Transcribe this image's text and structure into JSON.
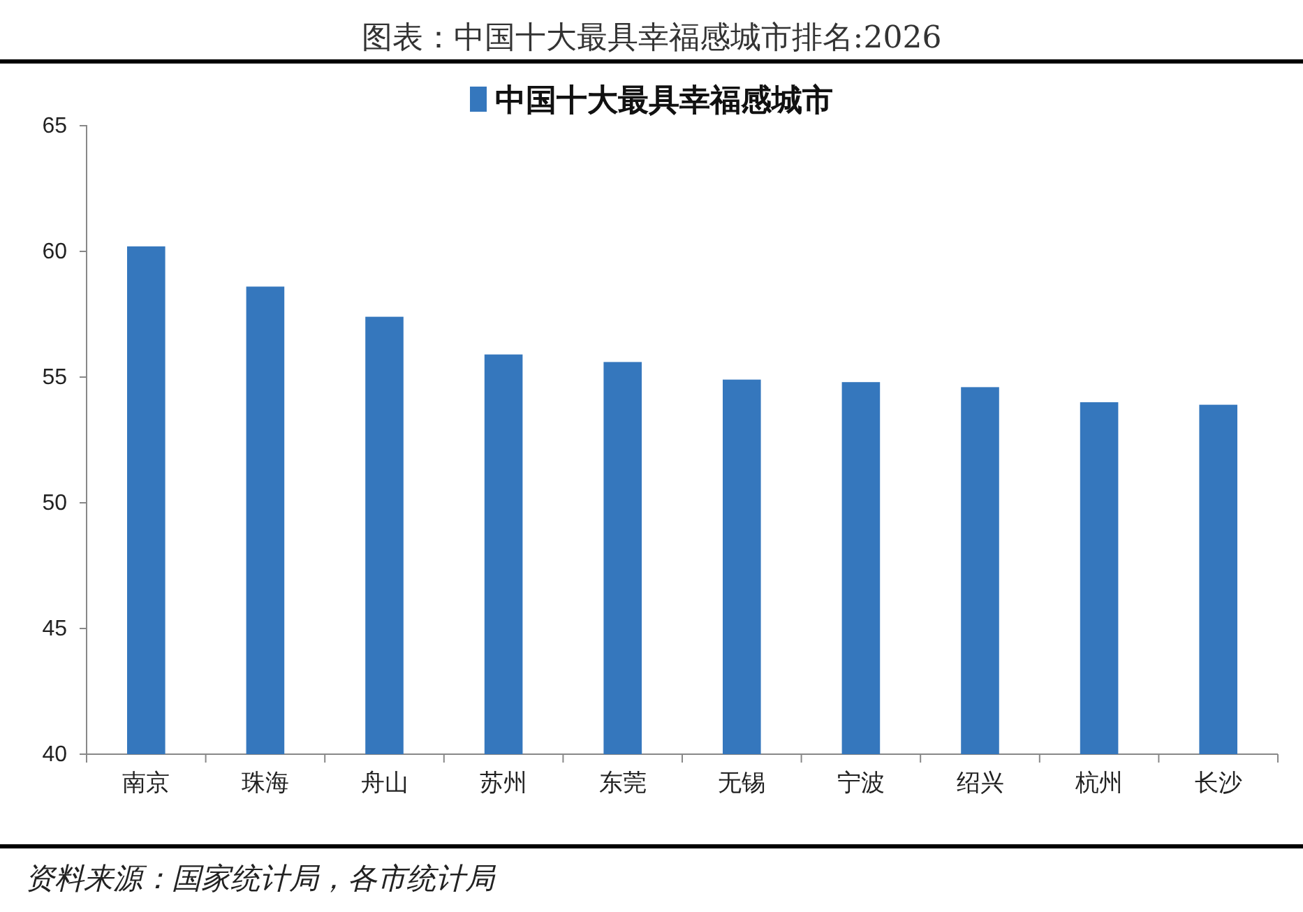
{
  "chart_data": {
    "type": "bar",
    "title": "图表：中国十大最具幸福感城市排名:2026",
    "categories": [
      "南京",
      "珠海",
      "舟山",
      "苏州",
      "东莞",
      "无锡",
      "宁波",
      "绍兴",
      "杭州",
      "长沙"
    ],
    "series": [
      {
        "name": "中国十大最具幸福感城市",
        "color": "#3577bd",
        "values": [
          60.2,
          58.6,
          57.4,
          55.9,
          55.6,
          54.9,
          54.8,
          54.6,
          54.0,
          53.9
        ]
      }
    ],
    "ylim": [
      40,
      65
    ],
    "yticks": [
      40,
      45,
      50,
      55,
      60,
      65
    ],
    "grid": false,
    "legend": "top",
    "annotations": [
      "资料来源：国家统计局，各市统计局"
    ]
  }
}
